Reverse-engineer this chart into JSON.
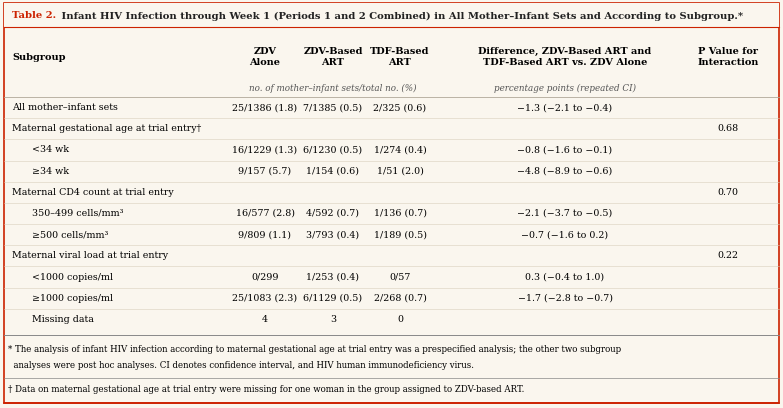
{
  "title_red": "Table 2.",
  "title_black": " Infant HIV Infection through Week 1 (Periods 1 and 2 Combined) in All Mother–Infant Sets and According to Subgroup.*",
  "bg_color": "#faf6ee",
  "title_color": "#cc2200",
  "border_color": "#cc2200",
  "col_headers": [
    "Subgroup",
    "ZDV\nAlone",
    "ZDV-Based\nART",
    "TDF-Based\nART",
    "Difference, ZDV-Based ART and\nTDF-Based ART vs. ZDV Alone",
    "P Value for\nInteraction"
  ],
  "subhdr_left": "no. of mother–infant sets/total no. (%)",
  "subhdr_right": "percentage points (repeated CI)",
  "rows": [
    {
      "subgroup": "All mother–infant sets",
      "zdv": "25/1386 (1.8)",
      "zdv_based": "7/1385 (0.5)",
      "tdf": "2/325 (0.6)",
      "diff": "−1.3 (−2.1 to −0.4)",
      "p": "",
      "indent": 0,
      "category": false
    },
    {
      "subgroup": "Maternal gestational age at trial entry†",
      "zdv": "",
      "zdv_based": "",
      "tdf": "",
      "diff": "",
      "p": "0.68",
      "indent": 0,
      "category": true
    },
    {
      "subgroup": "<34 wk",
      "zdv": "16/1229 (1.3)",
      "zdv_based": "6/1230 (0.5)",
      "tdf": "1/274 (0.4)",
      "diff": "−0.8 (−1.6 to −0.1)",
      "p": "",
      "indent": 1,
      "category": false
    },
    {
      "subgroup": "≥34 wk",
      "zdv": "9/157 (5.7)",
      "zdv_based": "1/154 (0.6)",
      "tdf": "1/51 (2.0)",
      "diff": "−4.8 (−8.9 to −0.6)",
      "p": "",
      "indent": 1,
      "category": false
    },
    {
      "subgroup": "Maternal CD4 count at trial entry",
      "zdv": "",
      "zdv_based": "",
      "tdf": "",
      "diff": "",
      "p": "0.70",
      "indent": 0,
      "category": true
    },
    {
      "subgroup": "350–499 cells/mm³",
      "zdv": "16/577 (2.8)",
      "zdv_based": "4/592 (0.7)",
      "tdf": "1/136 (0.7)",
      "diff": "−2.1 (−3.7 to −0.5)",
      "p": "",
      "indent": 1,
      "category": false
    },
    {
      "subgroup": "≥500 cells/mm³",
      "zdv": "9/809 (1.1)",
      "zdv_based": "3/793 (0.4)",
      "tdf": "1/189 (0.5)",
      "diff": "−0.7 (−1.6 to 0.2)",
      "p": "",
      "indent": 1,
      "category": false
    },
    {
      "subgroup": "Maternal viral load at trial entry",
      "zdv": "",
      "zdv_based": "",
      "tdf": "",
      "diff": "",
      "p": "0.22",
      "indent": 0,
      "category": true
    },
    {
      "subgroup": "<1000 copies/ml",
      "zdv": "0/299",
      "zdv_based": "1/253 (0.4)",
      "tdf": "0/57",
      "diff": "0.3 (−0.4 to 1.0)",
      "p": "",
      "indent": 1,
      "category": false
    },
    {
      "subgroup": "≥1000 copies/ml",
      "zdv": "25/1083 (2.3)",
      "zdv_based": "6/1129 (0.5)",
      "tdf": "2/268 (0.7)",
      "diff": "−1.7 (−2.8 to −0.7)",
      "p": "",
      "indent": 1,
      "category": false
    },
    {
      "subgroup": "Missing data",
      "zdv": "4",
      "zdv_based": "3",
      "tdf": "0",
      "diff": "",
      "p": "",
      "indent": 1,
      "category": false
    }
  ],
  "footnote1": "* The analysis of infant HIV infection according to maternal gestational age at trial entry was a prespecified analysis; the other two subgroup",
  "footnote2": "  analyses were post hoc analyses. CI denotes confidence interval, and HIV human immunodeficiency virus.",
  "footnote3": "† Data on maternal gestational age at trial entry were missing for one woman in the group assigned to ZDV-based ART."
}
